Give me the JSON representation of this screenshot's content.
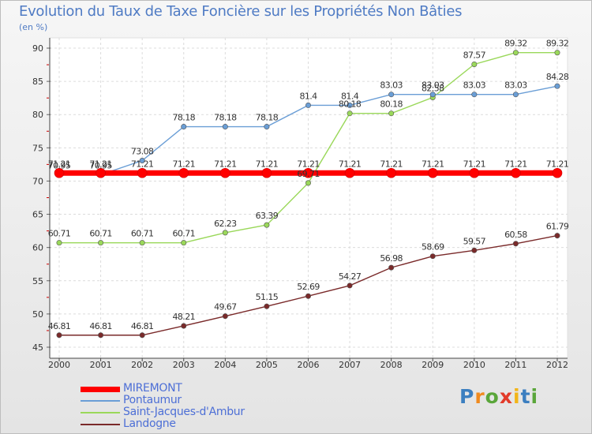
{
  "title": "Evolution du Taux de Taxe Foncière sur les Propriétés Non Bâties",
  "subtitle": "(en %)",
  "logo": {
    "text": "Proxiti",
    "colors": [
      "#3c7fc0",
      "#f08a1f",
      "#5aa63a",
      "#e23b2a",
      "#f2b51a",
      "#3c7fc0",
      "#5aa63a"
    ]
  },
  "chart_data": {
    "type": "line",
    "title": "Evolution du Taux de Taxe Foncière sur les Propriétés Non Bâties",
    "ylabel": "(en %)",
    "x": [
      "2000",
      "2001",
      "2002",
      "2003",
      "2004",
      "2005",
      "2006",
      "2007",
      "2008",
      "2009",
      "2010",
      "2011",
      "2012"
    ],
    "ylim": [
      45,
      90
    ],
    "yticks": [
      45,
      50,
      55,
      60,
      65,
      70,
      75,
      80,
      85,
      90
    ],
    "grid": true,
    "legend_position": "bottom-left",
    "series": [
      {
        "name": "MIREMONT",
        "color": "#ff0000",
        "values": [
          71.21,
          71.21,
          71.21,
          71.21,
          71.21,
          71.21,
          71.21,
          71.21,
          71.21,
          71.21,
          71.21,
          71.21,
          71.21
        ],
        "labels": [
          "71.21",
          "71.21",
          "71.21",
          "71.21",
          "71.21",
          "71.21",
          "71.21",
          "71.21",
          "71.21",
          "71.21",
          "71.21",
          "71.21",
          "71.21"
        ]
      },
      {
        "name": "Pontaumur",
        "color": "#6a9ed6",
        "values": [
          70.95,
          70.95,
          73.08,
          78.18,
          78.18,
          78.18,
          81.4,
          81.4,
          83.03,
          83.03,
          83.03,
          83.03,
          84.28
        ],
        "labels": [
          "70.95",
          "70.95",
          "73.08",
          "78.18",
          "78.18",
          "78.18",
          "81.4",
          "81.4",
          "83.03",
          "83.03",
          "83.03",
          "83.03",
          "84.28"
        ]
      },
      {
        "name": "Saint-Jacques-d'Ambur",
        "color": "#9ad85a",
        "values": [
          60.71,
          60.71,
          60.71,
          60.71,
          62.23,
          63.39,
          69.71,
          80.18,
          80.18,
          82.58,
          87.57,
          89.32,
          89.32
        ],
        "labels": [
          "60.71",
          "60.71",
          "60.71",
          "60.71",
          "62.23",
          "63.39",
          "69.71",
          "80.18",
          "80.18",
          "82.58",
          "87.57",
          "89.32",
          "89.32"
        ]
      },
      {
        "name": "Landogne",
        "color": "#7a2a2a",
        "values": [
          46.81,
          46.81,
          46.81,
          48.21,
          49.67,
          51.15,
          52.69,
          54.27,
          56.98,
          58.69,
          59.57,
          60.58,
          61.79
        ],
        "labels": [
          "46.81",
          "46.81",
          "46.81",
          "48.21",
          "49.67",
          "51.15",
          "52.69",
          "54.27",
          "56.98",
          "58.69",
          "59.57",
          "60.58",
          "61.79"
        ]
      }
    ]
  }
}
